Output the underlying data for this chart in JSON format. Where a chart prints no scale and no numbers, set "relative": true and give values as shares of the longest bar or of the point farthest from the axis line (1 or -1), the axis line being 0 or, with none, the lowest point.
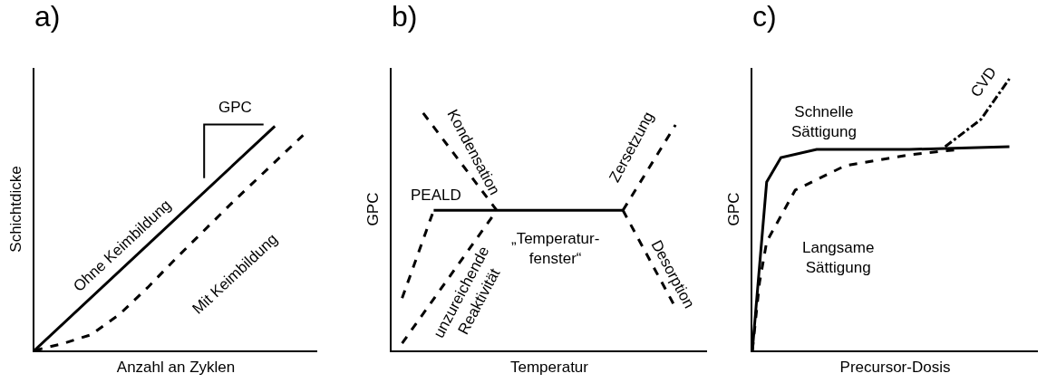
{
  "chart_data": [
    {
      "type": "line",
      "title": "a)",
      "xlabel": "Anzahl an Zyklen",
      "ylabel": "Schichtdicke",
      "relative": true,
      "categories": [
        null,
        null,
        null,
        null,
        null,
        null,
        null,
        null,
        null,
        null,
        null,
        null,
        null,
        null,
        null,
        null,
        null,
        null,
        null,
        null,
        null
      ],
      "series": [
        {
          "color": "#000000",
          "line_style": "solid",
          "values": [
            0,
            null,
            null,
            null,
            null,
            null,
            null,
            null,
            null,
            null,
            null,
            null,
            null,
            null,
            null,
            null,
            null,
            1,
            null,
            null,
            null
          ]
        },
        {
          "color": "#000000",
          "line_style": "dashed",
          "values": [
            0,
            null,
            0.03,
            null,
            0.07,
            null,
            0.16,
            null,
            0.28,
            null,
            0.41,
            null,
            null,
            null,
            0.66,
            null,
            null,
            null,
            null,
            0.96,
            null
          ]
        }
      ],
      "annotations": [
        "GPC",
        "Ohne Keimbildung",
        "Mit Keimbildung"
      ]
    },
    {
      "type": "line",
      "title": "b)",
      "xlabel": "Temperatur",
      "ylabel": "GPC",
      "relative": true,
      "categories": [
        null,
        null,
        null,
        null,
        null,
        null,
        null,
        null,
        null,
        null,
        null,
        null,
        null,
        null,
        null,
        null,
        null,
        null,
        null,
        null,
        null,
        null,
        null,
        null,
        null,
        null,
        null,
        null,
        null,
        null,
        null
      ],
      "series": [
        {
          "color": "#000000",
          "line_style": "solid",
          "values": [
            null,
            null,
            null,
            null,
            0.59,
            null,
            null,
            null,
            null,
            null,
            null,
            null,
            null,
            null,
            null,
            null,
            null,
            null,
            null,
            null,
            null,
            null,
            0.59,
            null,
            null,
            null,
            null,
            null,
            null,
            null,
            null
          ]
        },
        {
          "color": "#000000",
          "line_style": "dashed",
          "values": [
            null,
            0.22,
            null,
            null,
            0.59,
            null,
            null,
            null,
            null,
            null,
            null,
            null,
            null,
            null,
            null,
            null,
            null,
            null,
            null,
            null,
            null,
            null,
            null,
            null,
            null,
            null,
            null,
            null,
            null,
            null,
            null
          ]
        },
        {
          "color": "#000000",
          "line_style": "dashed",
          "values": [
            null,
            null,
            null,
            1,
            null,
            null,
            null,
            null,
            null,
            null,
            0.59,
            null,
            null,
            null,
            null,
            null,
            null,
            null,
            null,
            null,
            null,
            null,
            null,
            null,
            null,
            null,
            null,
            null,
            null,
            null,
            null
          ]
        },
        {
          "color": "#000000",
          "line_style": "dashed",
          "values": [
            null,
            0.03,
            null,
            null,
            null,
            null,
            null,
            null,
            null,
            null,
            0.59,
            null,
            null,
            null,
            null,
            null,
            null,
            null,
            null,
            null,
            null,
            null,
            null,
            null,
            null,
            null,
            null,
            null,
            null,
            null,
            null
          ]
        },
        {
          "color": "#000000",
          "line_style": "dashed",
          "values": [
            null,
            null,
            null,
            null,
            null,
            null,
            null,
            null,
            null,
            null,
            null,
            null,
            null,
            null,
            null,
            null,
            null,
            null,
            null,
            null,
            null,
            null,
            0.59,
            null,
            null,
            null,
            null,
            0.95,
            null,
            null,
            null
          ]
        },
        {
          "color": "#000000",
          "line_style": "dashed",
          "values": [
            null,
            null,
            null,
            null,
            null,
            null,
            null,
            null,
            null,
            null,
            null,
            null,
            null,
            null,
            null,
            null,
            null,
            null,
            null,
            null,
            null,
            null,
            0.59,
            null,
            null,
            null,
            null,
            0.18,
            null,
            null,
            null
          ]
        }
      ],
      "annotations": [
        "PEALD",
        "Kondensation",
        "unzureichende\nReaktivität",
        "„Temperatur-\nfenster“",
        "Zersetzung",
        "Desorption"
      ]
    },
    {
      "type": "line",
      "title": "c)",
      "xlabel": "Precursor-Dosis",
      "ylabel": "GPC",
      "relative": true,
      "categories": [
        null,
        null,
        null,
        null,
        null,
        null,
        null,
        null,
        null,
        null,
        null,
        null,
        null,
        null,
        null,
        null,
        null,
        null,
        null,
        null,
        null,
        null,
        null,
        null,
        null,
        null,
        null,
        null,
        null,
        null,
        null,
        null,
        null,
        null,
        null,
        null,
        null,
        null,
        null,
        null,
        null
      ],
      "series": [
        {
          "color": "#000000",
          "line_style": "solid",
          "values": [
            0,
            null,
            0.62,
            null,
            0.71,
            null,
            null,
            null,
            null,
            0.74,
            null,
            null,
            null,
            null,
            null,
            null,
            null,
            null,
            null,
            null,
            null,
            null,
            0.74,
            null,
            null,
            null,
            null,
            null,
            null,
            null,
            null,
            null,
            null,
            null,
            null,
            null,
            0.75,
            null,
            null,
            null,
            null
          ]
        },
        {
          "color": "#000000",
          "line_style": "dashed",
          "values": [
            0,
            0.25,
            0.4,
            null,
            null,
            null,
            0.59,
            null,
            null,
            null,
            null,
            null,
            null,
            0.68,
            null,
            null,
            null,
            null,
            null,
            null,
            null,
            null,
            0.72,
            null,
            null,
            null,
            null,
            null,
            null,
            0.74,
            null,
            null,
            null,
            null,
            null,
            null,
            null,
            null,
            null,
            null,
            null
          ]
        },
        {
          "color": "#000000",
          "line_style": "dashdot",
          "values": [
            null,
            null,
            null,
            null,
            null,
            null,
            null,
            null,
            null,
            null,
            null,
            null,
            null,
            null,
            null,
            null,
            null,
            null,
            null,
            null,
            null,
            null,
            null,
            null,
            null,
            null,
            null,
            0.75,
            null,
            null,
            null,
            null,
            0.85,
            null,
            null,
            null,
            1,
            null,
            null,
            null,
            null
          ]
        }
      ],
      "annotations": [
        "Schnelle\nSättigung",
        "Langsame\nSättigung",
        "CVD"
      ]
    }
  ]
}
